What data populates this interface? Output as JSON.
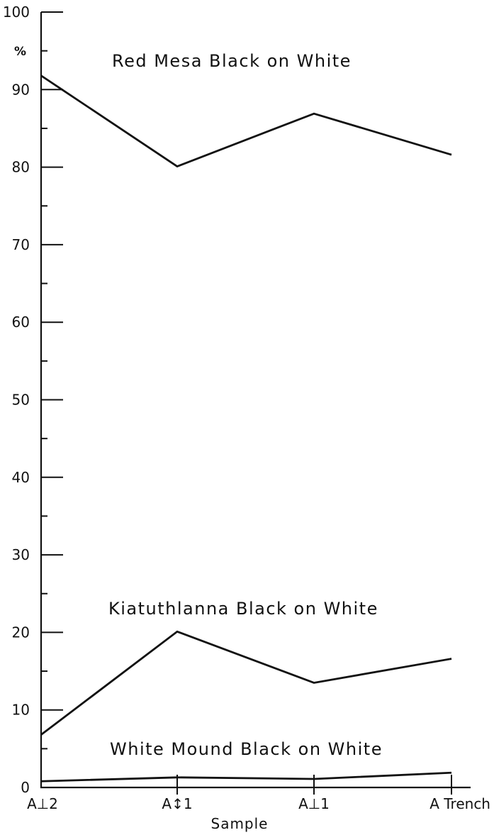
{
  "chart_data": {
    "type": "line",
    "title": "",
    "xlabel": "Sample",
    "ylabel": "%",
    "categories": [
      "A⊥2",
      "A↕1",
      "A⊥1",
      "A Trench"
    ],
    "ylim": [
      0,
      100
    ],
    "y_major_ticks": [
      0,
      10,
      20,
      30,
      40,
      50,
      60,
      70,
      80,
      90,
      100
    ],
    "y_minor_step": 5,
    "grid": false,
    "series": [
      {
        "name": "Red Mesa Black on White",
        "values": [
          91.8,
          80.1,
          86.9,
          81.6
        ]
      },
      {
        "name": "Kiatuthlanna Black on White",
        "values": [
          6.8,
          20.1,
          13.5,
          16.6
        ]
      },
      {
        "name": "White Mound Black on White",
        "values": [
          0.8,
          1.3,
          1.1,
          1.9
        ]
      }
    ]
  }
}
